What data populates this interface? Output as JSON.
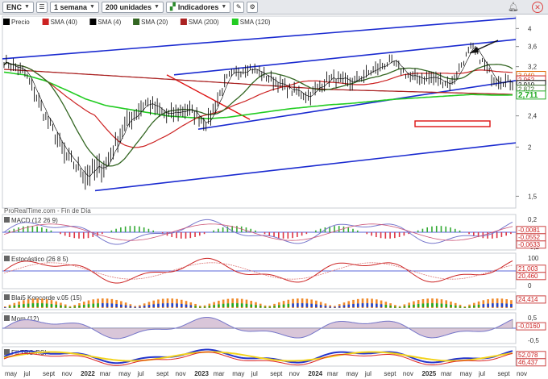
{
  "toolbar": {
    "symbol": "ENC",
    "timeframe": "1 semana",
    "units": "200 unidades",
    "indicators": "Indicadores",
    "alert_icon": "bell-icon"
  },
  "legend": [
    {
      "label": "Precio",
      "color": "#000000"
    },
    {
      "label": "SMA (40)",
      "color": "#cc2222"
    },
    {
      "label": "SMA (4)",
      "color": "#000000"
    },
    {
      "label": "SMA (20)",
      "color": "#336622"
    },
    {
      "label": "SMA (200)",
      "color": "#aa2222"
    },
    {
      "label": "SMA (120)",
      "color": "#22cc22"
    }
  ],
  "watermark": "ProRealTime.com - Fin de Día",
  "price_axis": {
    "ticks": [
      "4",
      "3,6",
      "3,2",
      "2,8",
      "2,4",
      "2",
      "1,5"
    ],
    "tags": [
      {
        "text": "3,040",
        "color": "#dd6600"
      },
      {
        "text": "2,962",
        "color": "#cc2222"
      },
      {
        "text": "2,910",
        "color": "#000000"
      },
      {
        "text": "2,872",
        "color": "#336622"
      },
      {
        "text": "2,711",
        "color": "#22aa22"
      }
    ]
  },
  "x_axis": [
    "may",
    "jul",
    "sept",
    "nov",
    "2022",
    "mar",
    "may",
    "jul",
    "sept",
    "nov",
    "2023",
    "mar",
    "may",
    "jul",
    "sept",
    "nov",
    "2024",
    "mar",
    "may",
    "jul",
    "sept",
    "nov",
    "2025",
    "mar",
    "may",
    "jul",
    "sept",
    "nov"
  ],
  "panels": {
    "macd": {
      "title": "MACD (12 26 9)",
      "ticks": [
        "0,2",
        "0",
        "-0,2"
      ],
      "tags": [
        "-0,0081",
        "-0,0552",
        "-0,0633"
      ]
    },
    "stoch": {
      "title": "Estocástico (26 8 5)",
      "ticks": [
        "100",
        "50",
        "0"
      ],
      "tags": [
        "21,003",
        "20,460"
      ]
    },
    "koncorde": {
      "title": "Blai5 Koncorde v.05 (15)",
      "ticks": [],
      "tags": [
        "24,414"
      ]
    },
    "mom": {
      "title": "Mom (12)",
      "ticks": [
        "0,5",
        "-0,5"
      ],
      "tags": [
        "-0,0160"
      ]
    },
    "rsi": {
      "title": "FILTRO RSI",
      "ticks": [],
      "tags": [
        "52,078",
        "46,437"
      ]
    }
  },
  "chart_data": {
    "type": "line",
    "title": "ENC",
    "timeframe": "weekly",
    "x": [
      "2021-04",
      "2021-06",
      "2021-08",
      "2021-10",
      "2021-12",
      "2022-02",
      "2022-04",
      "2022-06",
      "2022-08",
      "2022-10",
      "2022-12",
      "2023-02",
      "2023-04",
      "2023-06",
      "2023-08",
      "2023-10",
      "2023-12",
      "2024-02",
      "2024-04",
      "2024-06",
      "2024-08",
      "2024-10",
      "2024-12",
      "2025-02",
      "2025-04",
      "2025-06"
    ],
    "series": [
      {
        "name": "Precio",
        "values": [
          3.3,
          3.1,
          2.4,
          1.9,
          1.7,
          1.8,
          2.3,
          2.6,
          2.4,
          2.5,
          2.3,
          3.0,
          3.2,
          3.0,
          2.8,
          2.7,
          3.0,
          2.9,
          3.1,
          3.3,
          3.0,
          3.0,
          2.9,
          3.6,
          3.0,
          2.91
        ]
      },
      {
        "name": "SMA (120)",
        "values": [
          3.1,
          3.05,
          2.95,
          2.8,
          2.65,
          2.55,
          2.5,
          2.45,
          2.4,
          2.38,
          2.36,
          2.38,
          2.42,
          2.46,
          2.5,
          2.53,
          2.56,
          2.58,
          2.61,
          2.64,
          2.66,
          2.68,
          2.7,
          2.72,
          2.71,
          2.711
        ]
      }
    ],
    "ylim": [
      1.5,
      4.2
    ],
    "y_scale": "log"
  }
}
